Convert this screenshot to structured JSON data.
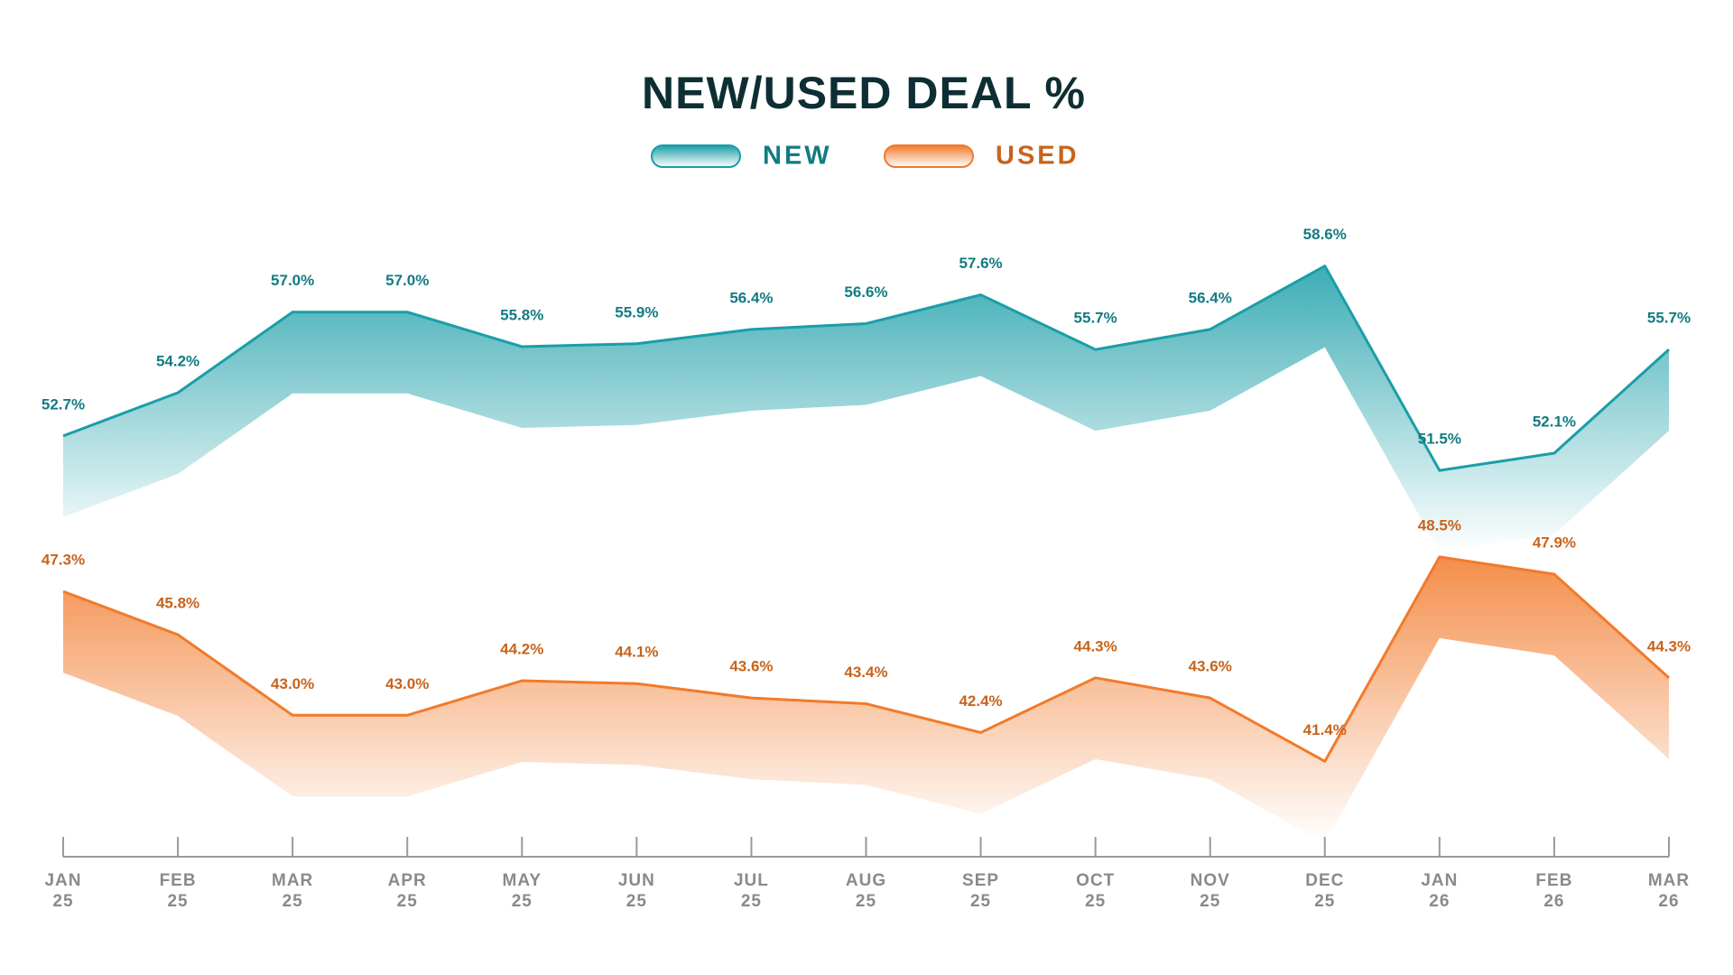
{
  "chart_data": {
    "type": "line",
    "title": "NEW/USED DEAL %",
    "categories": [
      "JAN 25",
      "FEB 25",
      "MAR 25",
      "APR 25",
      "MAY 25",
      "JUN 25",
      "JUL 25",
      "AUG 25",
      "SEP 25",
      "OCT 25",
      "NOV 25",
      "DEC 25",
      "JAN 26",
      "FEB 26",
      "MAR 26"
    ],
    "series": [
      {
        "name": "NEW",
        "color": "#1a9ea8",
        "label_color": "#137b82",
        "values": [
          52.7,
          54.2,
          57.0,
          57.0,
          55.8,
          55.9,
          56.4,
          56.6,
          57.6,
          55.7,
          56.4,
          58.6,
          51.5,
          52.1,
          55.7
        ],
        "value_labels": [
          "52.7%",
          "54.2%",
          "57.0%",
          "57.0%",
          "55.8%",
          "55.9%",
          "56.4%",
          "56.6%",
          "57.6%",
          "55.7%",
          "56.4%",
          "58.6%",
          "51.5%",
          "52.1%",
          "55.7%"
        ]
      },
      {
        "name": "USED",
        "color": "#f27a2b",
        "label_color": "#c8631c",
        "values": [
          47.3,
          45.8,
          43.0,
          43.0,
          44.2,
          44.1,
          43.6,
          43.4,
          42.4,
          44.3,
          43.6,
          41.4,
          48.5,
          47.9,
          44.3
        ],
        "value_labels": [
          "47.3%",
          "45.8%",
          "43.0%",
          "43.0%",
          "44.2%",
          "44.1%",
          "43.6%",
          "43.4%",
          "42.4%",
          "44.3%",
          "43.6%",
          "41.4%",
          "48.5%",
          "47.9%",
          "44.3%"
        ]
      }
    ],
    "ylim": [
      40,
      60
    ]
  }
}
